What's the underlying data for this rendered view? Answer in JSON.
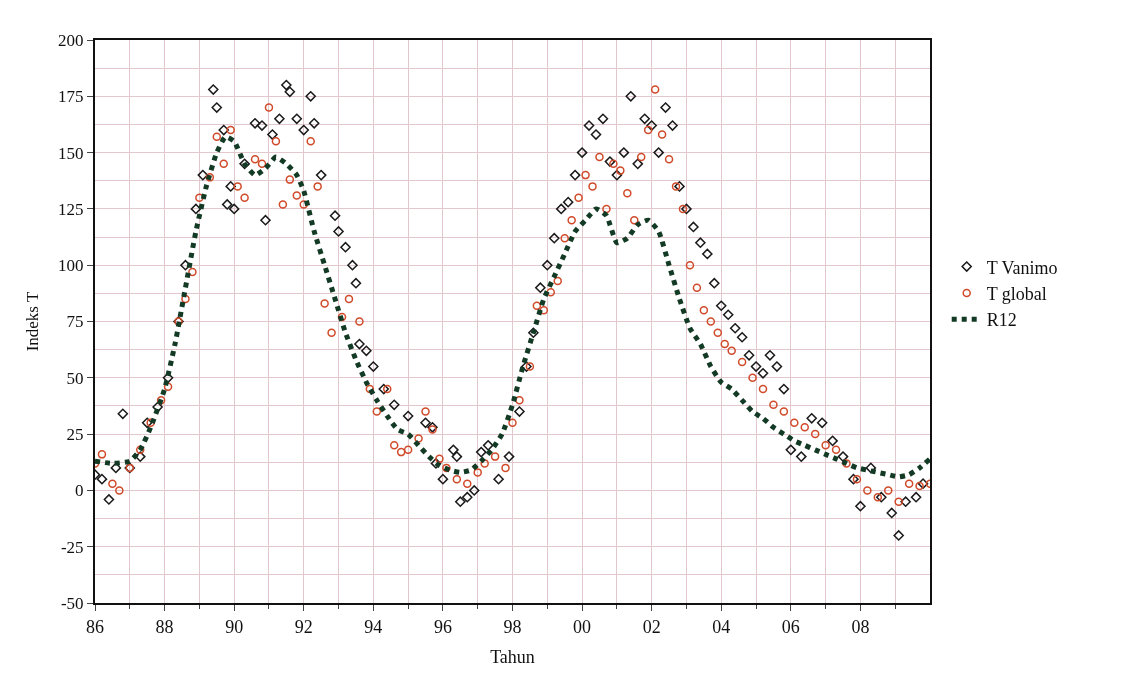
{
  "chart_data": {
    "type": "scatter",
    "xlabel": "Tahun",
    "ylabel": "Indeks T",
    "xlim": [
      1986,
      2010
    ],
    "xticks": [
      {
        "value": 1986,
        "label": "86"
      },
      {
        "value": 1988,
        "label": "88"
      },
      {
        "value": 1990,
        "label": "90"
      },
      {
        "value": 1992,
        "label": "92"
      },
      {
        "value": 1994,
        "label": "94"
      },
      {
        "value": 1996,
        "label": "96"
      },
      {
        "value": 1998,
        "label": "98"
      },
      {
        "value": 2000,
        "label": "00"
      },
      {
        "value": 2002,
        "label": "02"
      },
      {
        "value": 2004,
        "label": "04"
      },
      {
        "value": 2006,
        "label": "06"
      },
      {
        "value": 2008,
        "label": "08"
      }
    ],
    "ylim": [
      -50,
      200
    ],
    "yticks": [
      -50,
      -25,
      0,
      25,
      50,
      75,
      100,
      125,
      150,
      175,
      200
    ],
    "grid": true,
    "legend": "right",
    "series": [
      {
        "name": "T Vanimo",
        "color": "#1a1a1a",
        "marker": "diamond",
        "x": [
          1986.0,
          1986.2,
          1986.4,
          1986.6,
          1986.8,
          1987.0,
          1987.3,
          1987.5,
          1987.8,
          1988.1,
          1988.4,
          1988.6,
          1988.9,
          1989.1,
          1989.4,
          1989.5,
          1989.7,
          1989.8,
          1989.9,
          1990.0,
          1990.3,
          1990.6,
          1990.8,
          1990.9,
          1991.1,
          1991.3,
          1991.5,
          1991.6,
          1991.8,
          1992.0,
          1992.2,
          1992.3,
          1992.5,
          1992.9,
          1993.0,
          1993.2,
          1993.4,
          1993.5,
          1993.6,
          1993.8,
          1994.0,
          1994.3,
          1994.6,
          1995.0,
          1995.5,
          1995.7,
          1995.8,
          1996.0,
          1996.3,
          1996.4,
          1996.5,
          1996.7,
          1996.9,
          1997.1,
          1997.3,
          1997.6,
          1997.9,
          1998.2,
          1998.4,
          1998.6,
          1998.8,
          1999.0,
          1999.2,
          1999.4,
          1999.6,
          1999.8,
          2000.0,
          2000.2,
          2000.4,
          2000.6,
          2000.8,
          2001.0,
          2001.2,
          2001.4,
          2001.6,
          2001.8,
          2002.0,
          2002.2,
          2002.4,
          2002.6,
          2002.8,
          2003.0,
          2003.2,
          2003.4,
          2003.6,
          2003.8,
          2004.0,
          2004.2,
          2004.4,
          2004.6,
          2004.8,
          2005.0,
          2005.2,
          2005.4,
          2005.6,
          2005.8,
          2006.0,
          2006.3,
          2006.6,
          2006.9,
          2007.2,
          2007.5,
          2007.8,
          2008.0,
          2008.3,
          2008.6,
          2008.9,
          2009.1,
          2009.3,
          2009.6,
          2009.8
        ],
        "values": [
          7,
          5,
          -4,
          10,
          34,
          10,
          15,
          30,
          37,
          50,
          75,
          100,
          125,
          140,
          178,
          170,
          160,
          127,
          135,
          125,
          145,
          163,
          162,
          120,
          158,
          165,
          180,
          177,
          165,
          160,
          175,
          163,
          140,
          122,
          115,
          108,
          100,
          92,
          65,
          62,
          55,
          45,
          38,
          33,
          30,
          28,
          12,
          5,
          18,
          15,
          -5,
          -3,
          0,
          17,
          20,
          5,
          15,
          35,
          55,
          70,
          90,
          100,
          112,
          125,
          128,
          140,
          150,
          162,
          158,
          165,
          146,
          140,
          150,
          175,
          145,
          165,
          162,
          150,
          170,
          162,
          135,
          125,
          117,
          110,
          105,
          92,
          82,
          78,
          72,
          68,
          60,
          55,
          52,
          60,
          55,
          45,
          18,
          15,
          32,
          30,
          22,
          15,
          5,
          -7,
          10,
          -3,
          -10,
          -20,
          -5,
          -3,
          3
        ]
      },
      {
        "name": "T global",
        "color": "#d04a2a",
        "marker": "circle",
        "x": [
          1986.0,
          1986.2,
          1986.5,
          1986.7,
          1987.0,
          1987.3,
          1987.6,
          1987.9,
          1988.1,
          1988.4,
          1988.6,
          1988.8,
          1989.0,
          1989.3,
          1989.5,
          1989.7,
          1989.9,
          1990.1,
          1990.3,
          1990.6,
          1990.8,
          1991.0,
          1991.2,
          1991.4,
          1991.6,
          1991.8,
          1992.0,
          1992.2,
          1992.4,
          1992.6,
          1992.8,
          1993.1,
          1993.3,
          1993.6,
          1993.9,
          1994.1,
          1994.4,
          1994.6,
          1994.8,
          1995.0,
          1995.3,
          1995.5,
          1995.7,
          1995.9,
          1996.1,
          1996.4,
          1996.7,
          1997.0,
          1997.2,
          1997.5,
          1997.8,
          1998.0,
          1998.2,
          1998.5,
          1998.7,
          1998.9,
          1999.1,
          1999.3,
          1999.5,
          1999.7,
          1999.9,
          2000.1,
          2000.3,
          2000.5,
          2000.7,
          2000.9,
          2001.1,
          2001.3,
          2001.5,
          2001.7,
          2001.9,
          2002.1,
          2002.3,
          2002.5,
          2002.7,
          2002.9,
          2003.1,
          2003.3,
          2003.5,
          2003.7,
          2003.9,
          2004.1,
          2004.3,
          2004.6,
          2004.9,
          2005.2,
          2005.5,
          2005.8,
          2006.1,
          2006.4,
          2006.7,
          2007.0,
          2007.3,
          2007.6,
          2007.9,
          2008.2,
          2008.5,
          2008.8,
          2009.1,
          2009.4,
          2009.7,
          2010.0
        ],
        "values": [
          12,
          16,
          3,
          0,
          10,
          18,
          30,
          40,
          46,
          75,
          85,
          97,
          130,
          139,
          157,
          145,
          160,
          135,
          130,
          147,
          145,
          170,
          155,
          127,
          138,
          131,
          127,
          155,
          135,
          83,
          70,
          77,
          85,
          75,
          45,
          35,
          45,
          20,
          17,
          18,
          23,
          35,
          27,
          14,
          10,
          5,
          3,
          8,
          12,
          15,
          10,
          30,
          40,
          55,
          82,
          80,
          88,
          93,
          112,
          120,
          130,
          140,
          135,
          148,
          125,
          145,
          142,
          132,
          120,
          148,
          160,
          178,
          158,
          147,
          135,
          125,
          100,
          90,
          80,
          75,
          70,
          65,
          62,
          57,
          50,
          45,
          38,
          35,
          30,
          28,
          25,
          20,
          18,
          12,
          5,
          0,
          -3,
          0,
          -5,
          3,
          2,
          3
        ]
      },
      {
        "name": "R12",
        "color": "#123a24",
        "type": "line",
        "line_style": "dotted",
        "x": [
          1986.0,
          1986.5,
          1987.0,
          1987.3,
          1987.6,
          1988.0,
          1988.3,
          1988.6,
          1988.9,
          1989.2,
          1989.5,
          1989.75,
          1990.0,
          1990.3,
          1990.6,
          1990.9,
          1991.2,
          1991.5,
          1991.8,
          1992.0,
          1992.3,
          1992.6,
          1992.9,
          1993.2,
          1993.5,
          1993.8,
          1994.1,
          1994.4,
          1994.7,
          1995.0,
          1995.3,
          1995.6,
          1995.9,
          1996.2,
          1996.5,
          1996.8,
          1997.1,
          1997.4,
          1997.7,
          1998.0,
          1998.3,
          1998.6,
          1998.9,
          1999.2,
          1999.5,
          1999.8,
          2000.1,
          2000.4,
          2000.7,
          2001.0,
          2001.3,
          2001.6,
          2001.9,
          2002.2,
          2002.5,
          2002.8,
          2003.1,
          2003.4,
          2003.7,
          2004.0,
          2004.3,
          2004.6,
          2004.9,
          2005.2,
          2005.5,
          2005.8,
          2006.1,
          2006.4,
          2006.7,
          2007.0,
          2007.3,
          2007.6,
          2007.9,
          2008.2,
          2008.5,
          2008.8,
          2009.1,
          2009.4,
          2009.7,
          2010.0
        ],
        "values": [
          13,
          12,
          13,
          18,
          28,
          45,
          65,
          90,
          115,
          135,
          150,
          157,
          155,
          145,
          140,
          143,
          148,
          145,
          140,
          133,
          115,
          100,
          85,
          70,
          58,
          48,
          40,
          33,
          27,
          25,
          20,
          15,
          11,
          9,
          8,
          9,
          13,
          18,
          25,
          38,
          55,
          70,
          85,
          95,
          105,
          115,
          120,
          125,
          122,
          110,
          112,
          118,
          120,
          115,
          100,
          85,
          72,
          65,
          55,
          48,
          45,
          40,
          35,
          32,
          28,
          25,
          22,
          20,
          18,
          16,
          14,
          12,
          10,
          9,
          8,
          7,
          6,
          7,
          10,
          14
        ]
      }
    ]
  }
}
